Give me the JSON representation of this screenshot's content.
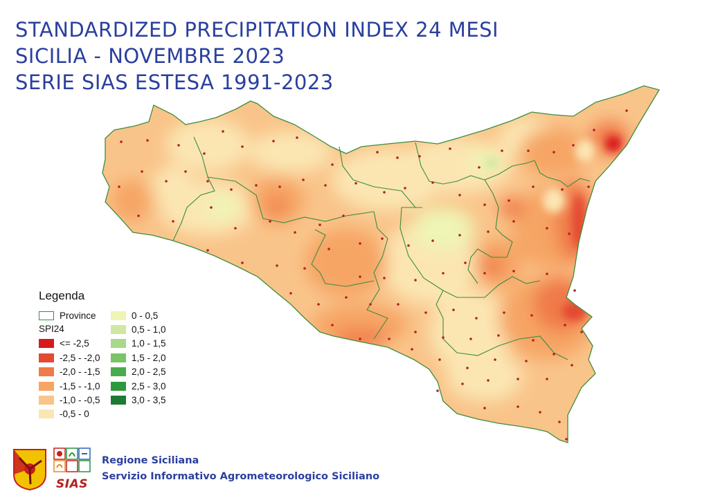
{
  "title": {
    "line1": "STANDARDIZED PRECIPITATION INDEX 24 MESI",
    "line2": "SICILIA - NOVEMBRE 2023",
    "line3": "SERIE SIAS ESTESA 1991-2023"
  },
  "legend": {
    "title": "Legenda",
    "province_label": "Province",
    "spi_label": "SPI24",
    "negative_classes": [
      {
        "label": "<= -2,5",
        "color": "#d7191c"
      },
      {
        "label": "-2,5 - -2,0",
        "color": "#e34a33"
      },
      {
        "label": "-2,0 - -1,5",
        "color": "#f07a4a"
      },
      {
        "label": "-1,5 - -1,0",
        "color": "#f6a565"
      },
      {
        "label": "-1,0 - -0,5",
        "color": "#f9c48a"
      },
      {
        "label": "-0,5 - 0",
        "color": "#fbe6b2"
      }
    ],
    "positive_classes": [
      {
        "label": "0 - 0,5",
        "color": "#eef5b5"
      },
      {
        "label": "0,5 - 1,0",
        "color": "#cfe8a0"
      },
      {
        "label": "1,0 - 1,5",
        "color": "#a8d98a"
      },
      {
        "label": "1,5 - 2,0",
        "color": "#78c466"
      },
      {
        "label": "2,0 - 2,5",
        "color": "#4aab4c"
      },
      {
        "label": "2,5 - 3,0",
        "color": "#2b9a3e"
      },
      {
        "label": "3,0 - 3,5",
        "color": "#1d7a35"
      }
    ]
  },
  "footer": {
    "org_line1": "Regione Siciliana",
    "org_line2": "Servizio Informativo Agrometeorologico Siciliano",
    "sias_logo_text": "SIAS"
  },
  "colors": {
    "title": "#2a3f9e",
    "province_border": "#3d8b3d",
    "station_dot": "#b3201e"
  }
}
